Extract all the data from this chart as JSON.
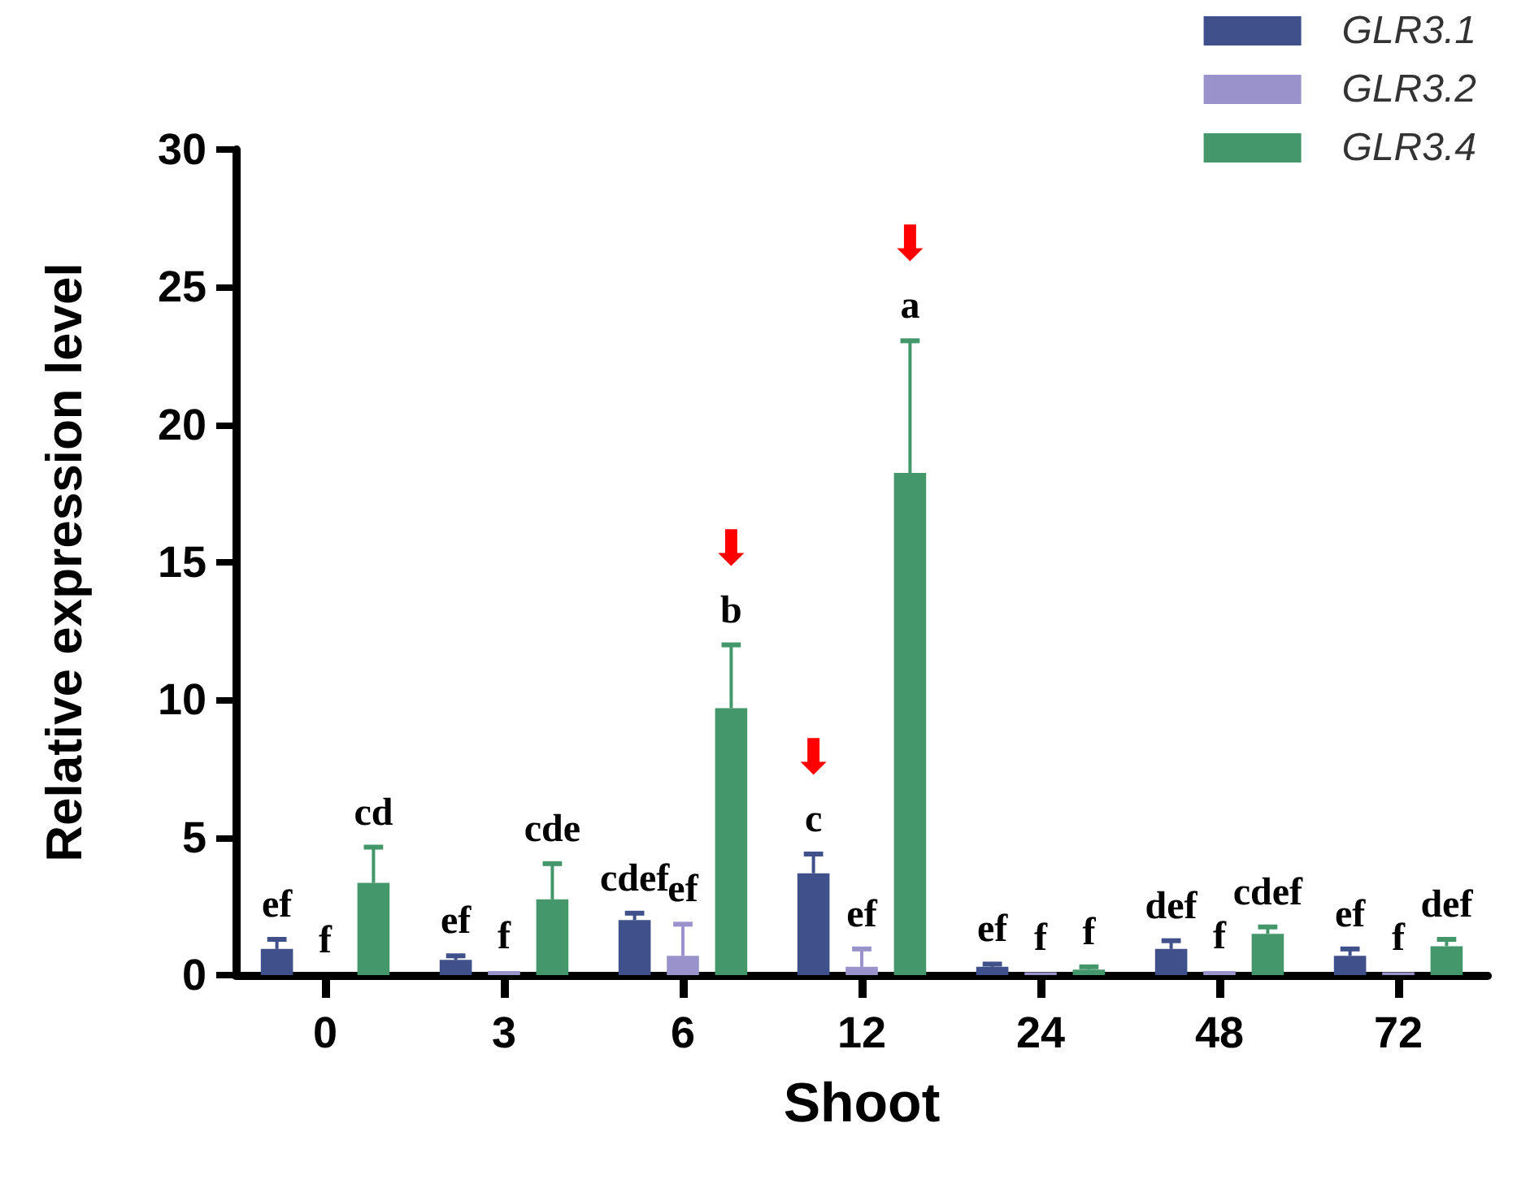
{
  "chart_data": {
    "type": "bar",
    "xlabel": "Shoot",
    "ylabel": "Relative expression level",
    "categories": [
      "0",
      "3",
      "6",
      "12",
      "24",
      "48",
      "72"
    ],
    "series": [
      {
        "name": "GLR3.1",
        "color": "#3f508a",
        "values": [
          0.95,
          0.55,
          2.0,
          3.7,
          0.3,
          0.95,
          0.7
        ],
        "errors": [
          [
            0.95,
            1.3
          ],
          [
            0.55,
            0.7
          ],
          [
            2.0,
            2.25
          ],
          [
            3.7,
            4.4
          ],
          [
            0.3,
            0.4
          ],
          [
            0.95,
            1.25
          ],
          [
            0.7,
            0.95
          ]
        ],
        "value_labels": [
          "ef",
          "ef",
          "cdef",
          "⬇\nc",
          "ef",
          "def",
          "ef"
        ]
      },
      {
        "name": "GLR3.2",
        "color": "#9a93cb",
        "values": [
          0,
          0.15,
          0.7,
          0.3,
          0.1,
          0.15,
          0.1
        ],
        "errors": [
          null,
          null,
          [
            0.7,
            1.85
          ],
          [
            0.3,
            0.95
          ],
          null,
          null,
          null
        ],
        "value_labels": [
          "f",
          "f",
          "ef",
          "ef",
          "f",
          "f",
          "f"
        ]
      },
      {
        "name": "GLR3.4",
        "color": "#44976a",
        "values": [
          3.35,
          2.75,
          9.7,
          18.25,
          0.2,
          1.5,
          1.05
        ],
        "errors": [
          [
            3.35,
            4.65
          ],
          [
            2.75,
            4.05
          ],
          [
            9.7,
            12.0
          ],
          [
            18.25,
            23.05
          ],
          [
            0.2,
            0.3
          ],
          [
            1.5,
            1.75
          ],
          [
            1.05,
            1.3
          ]
        ],
        "value_labels": [
          "cd",
          "cde",
          "⬇\nb",
          "⬇\na",
          "f",
          "cdef",
          "def"
        ]
      }
    ],
    "ylim": [
      0,
      30
    ],
    "yticks": [
      0,
      5,
      10,
      15,
      20,
      25,
      30
    ],
    "grid": false,
    "legend": "top right"
  }
}
